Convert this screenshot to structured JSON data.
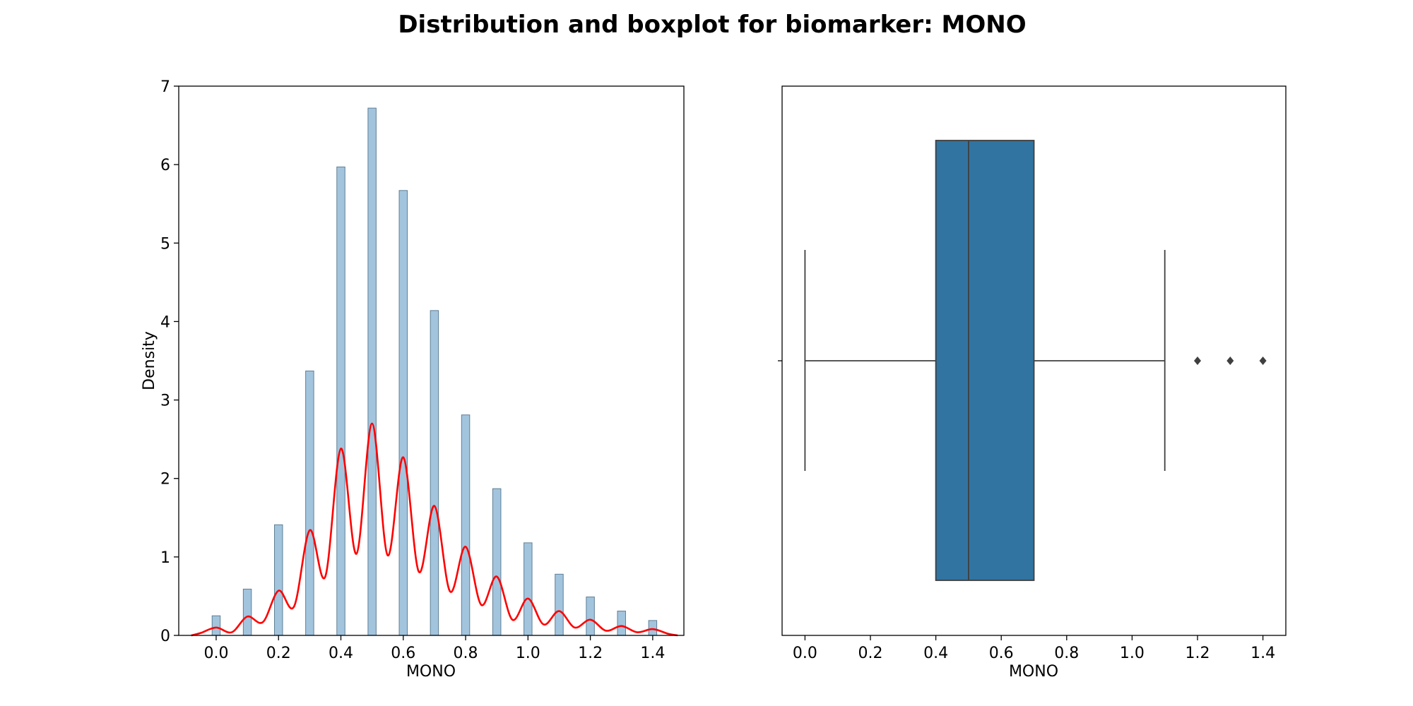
{
  "title": "Distribution and boxplot for biomarker: MONO",
  "chart_data": [
    {
      "type": "bar",
      "subtype": "histogram_with_kde",
      "xlabel": "MONO",
      "ylabel": "Density",
      "xlim": [
        -0.12,
        1.5
      ],
      "ylim": [
        0,
        7
      ],
      "xticks": [
        0.0,
        0.2,
        0.4,
        0.6,
        0.8,
        1.0,
        1.2,
        1.4
      ],
      "xtick_labels": [
        "0.0",
        "0.2",
        "0.4",
        "0.6",
        "0.8",
        "1.0",
        "1.2",
        "1.4"
      ],
      "yticks": [
        0,
        1,
        2,
        3,
        4,
        5,
        6,
        7
      ],
      "ytick_labels": [
        "0",
        "1",
        "2",
        "3",
        "4",
        "5",
        "6",
        "7"
      ],
      "bar_color": "#a3c4dd",
      "bar_edge_color": "#5e7f96",
      "kde_color": "#ff0000",
      "bins": {
        "centers": [
          0.0,
          0.1,
          0.2,
          0.3,
          0.4,
          0.5,
          0.6,
          0.7,
          0.8,
          0.9,
          1.0,
          1.1,
          1.2,
          1.3,
          1.4
        ],
        "values": [
          0.25,
          0.59,
          1.41,
          3.37,
          5.97,
          6.72,
          5.67,
          4.14,
          2.81,
          1.87,
          1.18,
          0.78,
          0.49,
          0.31,
          0.19
        ]
      },
      "kde": {
        "x": [
          -0.08,
          -0.05,
          0.0,
          0.05,
          0.1,
          0.15,
          0.2,
          0.25,
          0.3,
          0.35,
          0.4,
          0.45,
          0.5,
          0.55,
          0.6,
          0.65,
          0.7,
          0.75,
          0.8,
          0.85,
          0.9,
          0.95,
          1.0,
          1.05,
          1.1,
          1.15,
          1.2,
          1.25,
          1.3,
          1.35,
          1.4,
          1.45,
          1.48
        ],
        "y": [
          0.0,
          0.03,
          0.1,
          0.04,
          0.24,
          0.17,
          0.57,
          0.37,
          1.34,
          0.75,
          2.38,
          1.04,
          2.7,
          1.02,
          2.27,
          0.81,
          1.65,
          0.56,
          1.13,
          0.39,
          0.75,
          0.2,
          0.47,
          0.14,
          0.31,
          0.1,
          0.2,
          0.06,
          0.12,
          0.04,
          0.08,
          0.02,
          0.0
        ]
      }
    },
    {
      "type": "boxplot",
      "xlabel": "MONO",
      "xlim": [
        -0.07,
        1.47
      ],
      "xticks": [
        0.0,
        0.2,
        0.4,
        0.6,
        0.8,
        1.0,
        1.2,
        1.4
      ],
      "xtick_labels": [
        "0.0",
        "0.2",
        "0.4",
        "0.6",
        "0.8",
        "1.0",
        "1.2",
        "1.4"
      ],
      "box_color": "#3174a1",
      "line_color": "#3f3f3f",
      "whisker_low": 0.0,
      "q1": 0.4,
      "median": 0.5,
      "q3": 0.7,
      "whisker_high": 1.1,
      "outliers": [
        1.2,
        1.3,
        1.4
      ]
    }
  ]
}
